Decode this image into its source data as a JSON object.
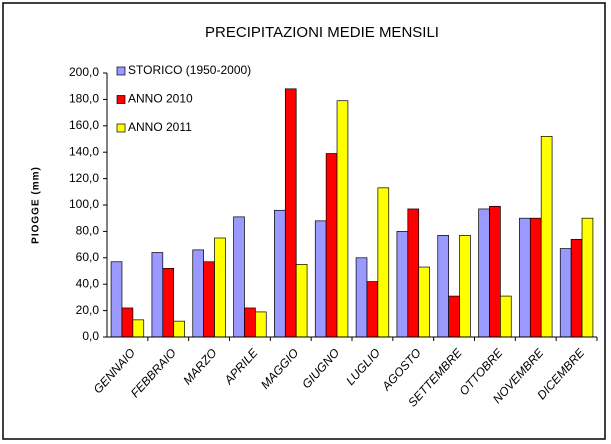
{
  "chart_data": {
    "type": "bar",
    "title": "PRECIPITAZIONI MEDIE MENSILI",
    "y_label": "PIOGGE (mm)",
    "categories": [
      "GENNAIO",
      "FEBBRAIO",
      "MARZO",
      "APRILE",
      "MAGGIO",
      "GIUGNO",
      "LUGLIO",
      "AGOSTO",
      "SETTEMBRE",
      "OTTOBRE",
      "NOVEMBRE",
      "DICEMBRE"
    ],
    "series": [
      {
        "name": "STORICO (1950-2000)",
        "color": "#9999ff",
        "values": [
          57,
          64,
          66,
          91,
          96,
          88,
          60,
          80,
          77,
          97,
          90,
          67
        ]
      },
      {
        "name": "ANNO 2010",
        "color": "#ff0000",
        "values": [
          22,
          52,
          57,
          22,
          188,
          139,
          42,
          97,
          31,
          99,
          90,
          74
        ]
      },
      {
        "name": "ANNO 2011",
        "color": "#ffff00",
        "values": [
          13,
          12,
          75,
          19,
          55,
          179,
          113,
          53,
          77,
          31,
          152,
          90
        ]
      }
    ],
    "ylim": [
      0,
      200
    ],
    "yticks": [
      {
        "value": 0,
        "label": "0,0"
      },
      {
        "value": 20,
        "label": "20,0"
      },
      {
        "value": 40,
        "label": "40,0"
      },
      {
        "value": 60,
        "label": "60,0"
      },
      {
        "value": 80,
        "label": "80,0"
      },
      {
        "value": 100,
        "label": "100,0"
      },
      {
        "value": 120,
        "label": "120,0"
      },
      {
        "value": 140,
        "label": "140,0"
      },
      {
        "value": 160,
        "label": "160,0"
      },
      {
        "value": 180,
        "label": "180,0"
      },
      {
        "value": 200,
        "label": "200,0"
      }
    ],
    "legend": "top-left",
    "grid": false
  }
}
